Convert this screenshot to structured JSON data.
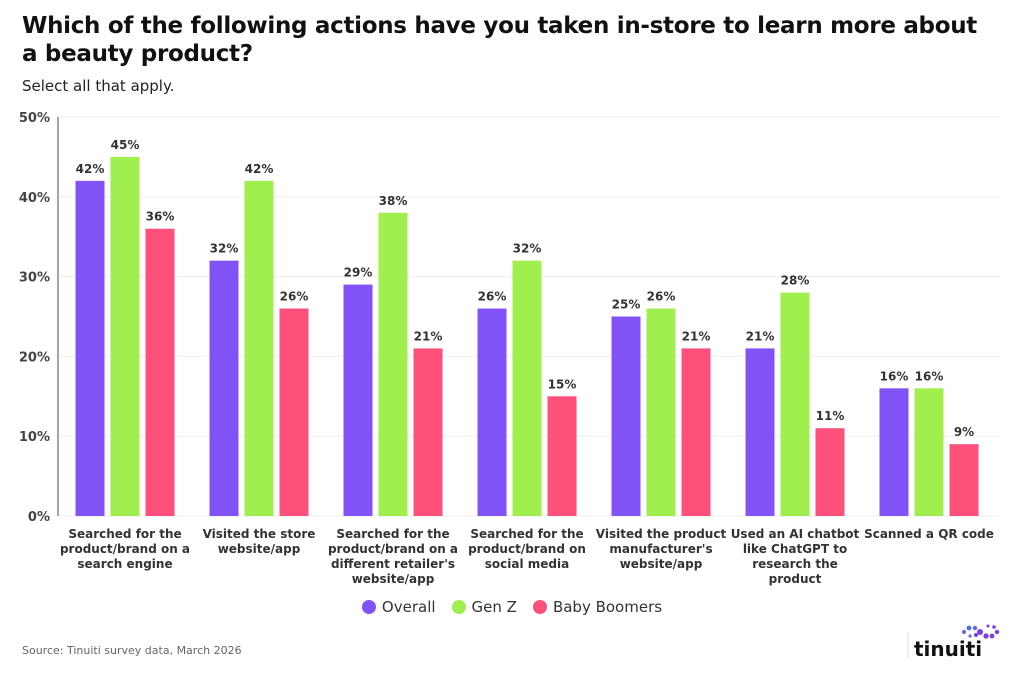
{
  "title": "Which of the following actions have you taken in-store to learn more about a beauty product?",
  "subtitle": "Select all that apply.",
  "source": "Source: Tinuiti survey data, March 2026",
  "logo": "tinuiti",
  "colors": {
    "Overall": "#8153f7",
    "Gen Z": "#a0ef4f",
    "Baby Boomers": "#ff4f7b"
  },
  "chart_data": {
    "type": "bar",
    "title": "Which of the following actions have you taken in-store to learn more about a beauty product?",
    "ylim": [
      0,
      50
    ],
    "yticks": [
      "0%",
      "10%",
      "20%",
      "30%",
      "40%",
      "50%"
    ],
    "grid": true,
    "legend": "bottom",
    "categories": [
      [
        "Searched for the",
        "product/brand on a",
        "search engine"
      ],
      [
        "Visited the store",
        "website/app"
      ],
      [
        "Searched for the",
        "product/brand on a",
        "different retailer's",
        "website/app"
      ],
      [
        "Searched for the",
        "product/brand on",
        "social media"
      ],
      [
        "Visited the product",
        "manufacturer's",
        "website/app"
      ],
      [
        "Used an AI chatbot",
        "like ChatGPT to",
        "research the",
        "product"
      ],
      [
        "Scanned a QR code"
      ]
    ],
    "series": [
      {
        "name": "Overall",
        "values": [
          42,
          32,
          29,
          26,
          25,
          21,
          16
        ]
      },
      {
        "name": "Gen Z",
        "values": [
          45,
          42,
          38,
          32,
          26,
          28,
          16
        ]
      },
      {
        "name": "Baby Boomers",
        "values": [
          36,
          26,
          21,
          15,
          21,
          11,
          9
        ]
      }
    ]
  }
}
